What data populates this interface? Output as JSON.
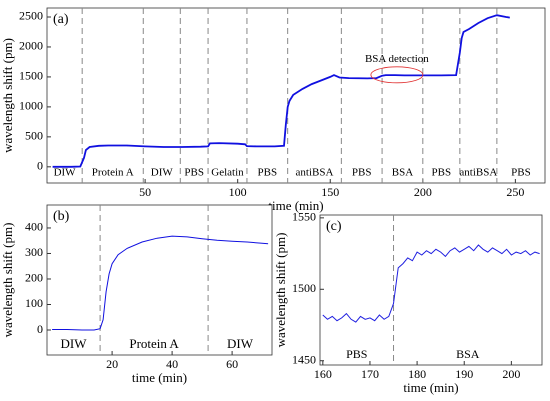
{
  "chart_data": [
    {
      "type": "line",
      "panel": "(a)",
      "xlabel": "time (min)",
      "ylabel": "wavelength shift (pm)",
      "xlim": [
        -3,
        266
      ],
      "ylim": [
        -270,
        2650
      ],
      "xticks": [
        50,
        100,
        150,
        200,
        250
      ],
      "yticks": [
        0,
        500,
        1000,
        1500,
        2000,
        2500
      ],
      "color": "#1010e0",
      "x": [
        0,
        5,
        10,
        15,
        17,
        18,
        20,
        25,
        30,
        40,
        50,
        60,
        70,
        80,
        84,
        85,
        90,
        100,
        104,
        105,
        110,
        120,
        125,
        126,
        127,
        128,
        130,
        135,
        140,
        145,
        150,
        152,
        155,
        160,
        170,
        175,
        178,
        180,
        185,
        190,
        195,
        200,
        210,
        218,
        220,
        221,
        222,
        225,
        230,
        235,
        240,
        245,
        247
      ],
      "values": [
        0,
        0,
        0,
        5,
        150,
        280,
        330,
        350,
        355,
        355,
        340,
        330,
        330,
        335,
        340,
        390,
        395,
        385,
        375,
        345,
        340,
        340,
        350,
        700,
        1000,
        1100,
        1200,
        1300,
        1380,
        1440,
        1500,
        1530,
        1490,
        1480,
        1475,
        1480,
        1520,
        1530,
        1530,
        1525,
        1525,
        1525,
        1525,
        1530,
        1900,
        2150,
        2250,
        2300,
        2400,
        2480,
        2530,
        2500,
        2490
      ],
      "dividers": [
        16,
        49,
        69,
        84,
        105,
        127,
        156,
        178,
        200,
        220,
        240
      ],
      "regions": [
        "DIW",
        "Protein A",
        "DIW",
        "PBS",
        "Gelatin",
        "PBS",
        "antiBSA",
        "PBS",
        "BSA",
        "PBS",
        "antiBSA",
        "PBS"
      ],
      "annotation": "BSA detection"
    },
    {
      "type": "line",
      "panel": "(b)",
      "xlabel": "time (min)",
      "ylabel": "wavelength shift (pm)",
      "xlim": [
        -1.7,
        73.3
      ],
      "ylim": [
        -98,
        490
      ],
      "xticks": [
        20,
        40,
        60
      ],
      "yticks": [
        0,
        100,
        200,
        300,
        400
      ],
      "color": "#1010e0",
      "x": [
        0,
        5,
        10,
        14,
        16,
        17,
        18,
        19,
        20,
        22,
        25,
        30,
        35,
        40,
        45,
        50,
        55,
        60,
        65,
        70,
        72
      ],
      "values": [
        2,
        2,
        0,
        0,
        5,
        40,
        150,
        220,
        260,
        295,
        320,
        345,
        360,
        368,
        365,
        358,
        352,
        348,
        345,
        340,
        338
      ],
      "dividers": [
        16,
        52
      ],
      "regions": [
        "DIW",
        "Protein A",
        "DIW"
      ]
    },
    {
      "type": "line",
      "panel": "(c)",
      "xlabel": "time (min)",
      "ylabel": "wavelength shift (pm)",
      "xlim": [
        159.4,
        206.5
      ],
      "ylim": [
        1447,
        1552
      ],
      "xticks": [
        160,
        170,
        180,
        190,
        200
      ],
      "yticks": [
        1450,
        1500,
        1550
      ],
      "color": "#2020e0",
      "x": [
        160,
        161,
        162,
        163,
        164,
        165,
        166,
        167,
        168,
        169,
        170,
        171,
        172,
        173,
        174,
        175,
        176,
        177,
        178,
        179,
        180,
        181,
        182,
        183,
        184,
        185,
        186,
        187,
        188,
        189,
        190,
        191,
        192,
        193,
        194,
        195,
        196,
        197,
        198,
        199,
        200,
        201,
        202,
        203,
        204,
        205,
        206
      ],
      "values": [
        1482,
        1479,
        1481,
        1478,
        1480,
        1483,
        1479,
        1477,
        1481,
        1479,
        1480,
        1478,
        1482,
        1479,
        1481,
        1490,
        1515,
        1518,
        1522,
        1520,
        1526,
        1524,
        1527,
        1525,
        1528,
        1526,
        1523,
        1527,
        1529,
        1526,
        1528,
        1530,
        1527,
        1531,
        1528,
        1526,
        1529,
        1527,
        1525,
        1528,
        1524,
        1526,
        1525,
        1527,
        1524,
        1526,
        1525
      ],
      "dividers": [
        175
      ],
      "regions": [
        "PBS",
        "BSA"
      ]
    }
  ]
}
